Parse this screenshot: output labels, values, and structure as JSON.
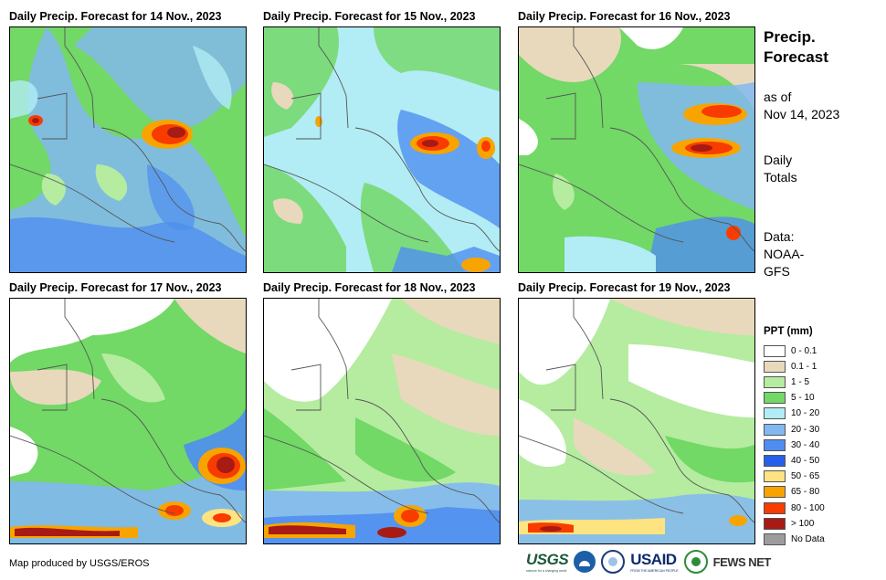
{
  "panels": [
    {
      "title": "Daily Precip. Forecast for 14 Nov., 2023"
    },
    {
      "title": "Daily Precip. Forecast for 15 Nov., 2023"
    },
    {
      "title": "Daily Precip. Forecast for 16 Nov., 2023"
    },
    {
      "title": "Daily Precip. Forecast for 17 Nov., 2023"
    },
    {
      "title": "Daily Precip. Forecast for 18 Nov., 2023"
    },
    {
      "title": "Daily Precip. Forecast for 19 Nov., 2023"
    }
  ],
  "sidebar": {
    "title_line1": "Precip.",
    "title_line2": "Forecast",
    "asof_line1": "as of",
    "asof_line2": "Nov 14, 2023",
    "totals_line1": "Daily",
    "totals_line2": "Totals",
    "source_line1": "Data:",
    "source_line2": "NOAA-",
    "source_line3": "GFS"
  },
  "legend": {
    "title": "PPT (mm)",
    "items": [
      {
        "label": "0 - 0.1",
        "color": "#ffffff"
      },
      {
        "label": "0.1 - 1",
        "color": "#e8d9bc"
      },
      {
        "label": "1 - 5",
        "color": "#b5eca0"
      },
      {
        "label": "5 - 10",
        "color": "#72d866"
      },
      {
        "label": "10 - 20",
        "color": "#b2ecf5"
      },
      {
        "label": "20 - 30",
        "color": "#82b8f2"
      },
      {
        "label": "30 - 40",
        "color": "#4f8ef0"
      },
      {
        "label": "40 - 50",
        "color": "#2660e8"
      },
      {
        "label": "50 - 65",
        "color": "#fee480"
      },
      {
        "label": "65 - 80",
        "color": "#f8a400"
      },
      {
        "label": "80 - 100",
        "color": "#f83c00"
      },
      {
        "label": "> 100",
        "color": "#a81a14"
      },
      {
        "label": "No Data",
        "color": "#9c9c9c"
      }
    ]
  },
  "footer": {
    "credit": "Map produced by USGS/EROS",
    "usgs": "USGS",
    "usgs_tag": "science for a changing world",
    "usaid": "USAID",
    "usaid_tag": "FROM THE AMERICAN PEOPLE",
    "fews": "FEWS NET"
  }
}
